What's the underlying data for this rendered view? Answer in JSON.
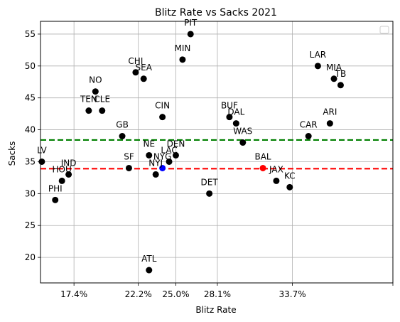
{
  "chart_data": {
    "type": "scatter",
    "title": "Blitz Rate vs Sacks 2021",
    "xlabel": "Blitz Rate",
    "ylabel": "Sacks",
    "xlim": [
      14.9,
      41.2
    ],
    "ylim": [
      16.0,
      57.0
    ],
    "x_tick_values": [
      17.4,
      22.2,
      25.0,
      28.1,
      33.7,
      41.2
    ],
    "x_tick_labels": [
      "17.4%",
      "22.2%",
      "25.0%",
      "28.1%",
      "33.7%",
      ""
    ],
    "y_ticks": [
      20,
      25,
      30,
      35,
      40,
      45,
      50,
      55
    ],
    "grid": true,
    "legend_placement": "top-right",
    "reference_lines": [
      {
        "y": 38.4,
        "color": "#008000",
        "style": "dashed"
      },
      {
        "y": 33.9,
        "color": "#ff0000",
        "style": "dashed"
      }
    ],
    "points": [
      {
        "label": "PIT",
        "x": 26.1,
        "y": 55,
        "color": "#000000"
      },
      {
        "label": "MIN",
        "x": 25.5,
        "y": 51,
        "color": "#000000"
      },
      {
        "label": "LAR",
        "x": 35.6,
        "y": 50,
        "color": "#000000"
      },
      {
        "label": "MIA",
        "x": 36.8,
        "y": 48,
        "color": "#000000"
      },
      {
        "label": "TB",
        "x": 37.3,
        "y": 47,
        "color": "#000000"
      },
      {
        "label": "CHI",
        "x": 22.0,
        "y": 49,
        "color": "#000000"
      },
      {
        "label": "SEA",
        "x": 22.6,
        "y": 48,
        "color": "#000000"
      },
      {
        "label": "NO",
        "x": 19.0,
        "y": 46,
        "color": "#000000"
      },
      {
        "label": "TEN",
        "x": 18.5,
        "y": 43,
        "color": "#000000"
      },
      {
        "label": "CLE",
        "x": 19.5,
        "y": 43,
        "color": "#000000"
      },
      {
        "label": "CIN",
        "x": 24.0,
        "y": 42,
        "color": "#000000"
      },
      {
        "label": "BUF",
        "x": 29.0,
        "y": 42,
        "color": "#000000"
      },
      {
        "label": "DAL",
        "x": 29.5,
        "y": 41,
        "color": "#000000"
      },
      {
        "label": "ARI",
        "x": 36.5,
        "y": 41,
        "color": "#000000"
      },
      {
        "label": "GB",
        "x": 21.0,
        "y": 39,
        "color": "#000000"
      },
      {
        "label": "CAR",
        "x": 34.9,
        "y": 39,
        "color": "#000000"
      },
      {
        "label": "WAS",
        "x": 30.0,
        "y": 38,
        "color": "#000000"
      },
      {
        "label": "NE",
        "x": 23.0,
        "y": 36,
        "color": "#000000"
      },
      {
        "label": "DEN",
        "x": 25.0,
        "y": 36,
        "color": "#000000"
      },
      {
        "label": "LAC",
        "x": 24.5,
        "y": 35,
        "color": "#000000"
      },
      {
        "label": "LV",
        "x": 15.0,
        "y": 35,
        "color": "#000000"
      },
      {
        "label": "SF",
        "x": 21.5,
        "y": 34,
        "color": "#000000"
      },
      {
        "label": "NYG",
        "x": 24.0,
        "y": 34,
        "color": "#0000ff"
      },
      {
        "label": "NYJ",
        "x": 23.5,
        "y": 33,
        "color": "#000000"
      },
      {
        "label": "IND",
        "x": 17.0,
        "y": 33,
        "color": "#000000"
      },
      {
        "label": "HOU",
        "x": 16.5,
        "y": 32,
        "color": "#000000"
      },
      {
        "label": "BAL",
        "x": 31.5,
        "y": 34,
        "color": "#ff0000"
      },
      {
        "label": "JAX",
        "x": 32.5,
        "y": 32,
        "color": "#000000"
      },
      {
        "label": "KC",
        "x": 33.5,
        "y": 31,
        "color": "#000000"
      },
      {
        "label": "DET",
        "x": 27.5,
        "y": 30,
        "color": "#000000"
      },
      {
        "label": "PHI",
        "x": 16.0,
        "y": 29,
        "color": "#000000"
      },
      {
        "label": "ATL",
        "x": 23.0,
        "y": 18,
        "color": "#000000"
      }
    ]
  }
}
